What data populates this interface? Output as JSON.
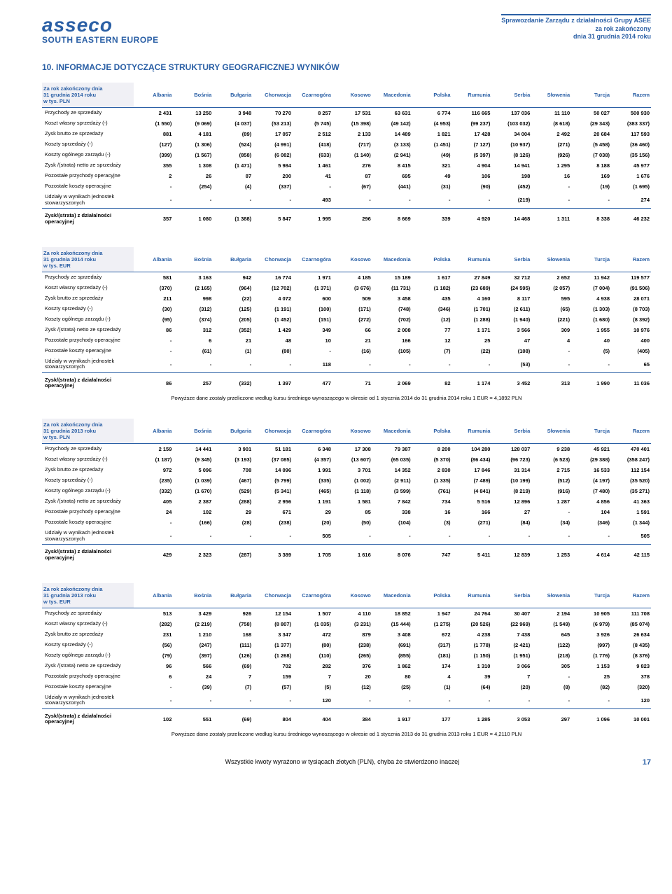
{
  "header": {
    "logo_top": "asseco",
    "logo_sub": "SOUTH EASTERN EUROPE",
    "right_line1": "Sprawozdanie Zarządu z działalności Grupy ASEE",
    "right_line2": "za rok zakończony",
    "right_line3": "dnia 31 grudnia 2014 roku"
  },
  "section_title": "10.  INFORMACJE DOTYCZĄCE STRUKTURY GEOGRAFICZNEJ WYNIKÓW",
  "columns": [
    "Albania",
    "Bośnia",
    "Bułgaria",
    "Chorwacja",
    "Czarnogóra",
    "Kosowo",
    "Macedonia",
    "Polska",
    "Rumunia",
    "Serbia",
    "Słowenia",
    "Turcja",
    "Razem"
  ],
  "tables": [
    {
      "title": "Za rok zakończony dnia\n31 grudnia 2014 roku\nw tys. PLN",
      "rows": [
        {
          "label": "Przychody ze sprzedaży",
          "v": [
            "2 431",
            "13 250",
            "3 948",
            "70 270",
            "8 257",
            "17 531",
            "63 631",
            "6 774",
            "116 665",
            "137 036",
            "11 110",
            "50 027",
            "500 930"
          ]
        },
        {
          "label": "Koszt własny sprzedaży (-)",
          "v": [
            "(1 550)",
            "(9 069)",
            "(4 037)",
            "(53 213)",
            "(5 745)",
            "(15 398)",
            "(49 142)",
            "(4 953)",
            "(99 237)",
            "(103 032)",
            "(8 618)",
            "(29 343)",
            "(383 337)"
          ]
        },
        {
          "label": "Zysk brutto ze sprzedaży",
          "v": [
            "881",
            "4 181",
            "(89)",
            "17 057",
            "2 512",
            "2 133",
            "14 489",
            "1 821",
            "17 428",
            "34 004",
            "2 492",
            "20 684",
            "117 593"
          ]
        },
        {
          "label": "Koszty sprzedaży (-)",
          "v": [
            "(127)",
            "(1 306)",
            "(524)",
            "(4 991)",
            "(418)",
            "(717)",
            "(3 133)",
            "(1 451)",
            "(7 127)",
            "(10 937)",
            "(271)",
            "(5 458)",
            "(36 460)"
          ]
        },
        {
          "label": "Koszty ogólnego zarządu (-)",
          "v": [
            "(399)",
            "(1 567)",
            "(858)",
            "(6 082)",
            "(633)",
            "(1 140)",
            "(2 941)",
            "(49)",
            "(5 397)",
            "(8 126)",
            "(926)",
            "(7 038)",
            "(35 156)"
          ]
        },
        {
          "label": "Zysk /(strata) netto ze sprzedaży",
          "v": [
            "355",
            "1 308",
            "(1 471)",
            "5 984",
            "1 461",
            "276",
            "8 415",
            "321",
            "4 904",
            "14 941",
            "1 295",
            "8 188",
            "45 977"
          ]
        },
        {
          "label": "Pozostałe przychody operacyjne",
          "v": [
            "2",
            "26",
            "87",
            "200",
            "41",
            "87",
            "695",
            "49",
            "106",
            "198",
            "16",
            "169",
            "1 676"
          ]
        },
        {
          "label": "Pozostałe koszty operacyjne",
          "v": [
            "-",
            "(254)",
            "(4)",
            "(337)",
            "-",
            "(67)",
            "(441)",
            "(31)",
            "(90)",
            "(452)",
            "-",
            "(19)",
            "(1 695)"
          ]
        },
        {
          "label": "Udziały w wynikach jednostek stowarzyszonych",
          "v": [
            "-",
            "-",
            "-",
            "-",
            "493",
            "-",
            "-",
            "-",
            "-",
            "(219)",
            "-",
            "-",
            "274"
          ]
        }
      ],
      "total": {
        "label": "Zysk/(strata) z działalności operacyjnej",
        "v": [
          "357",
          "1 080",
          "(1 388)",
          "5 847",
          "1 995",
          "296",
          "8 669",
          "339",
          "4 920",
          "14 468",
          "1 311",
          "8 338",
          "46 232"
        ]
      }
    },
    {
      "title": "Za rok zakończony dnia\n31 grudnia 2014 roku\nw tys. EUR",
      "rows": [
        {
          "label": "Przychody ze sprzedaży",
          "v": [
            "581",
            "3 163",
            "942",
            "16 774",
            "1 971",
            "4 185",
            "15 189",
            "1 617",
            "27 849",
            "32 712",
            "2 652",
            "11 942",
            "119 577"
          ]
        },
        {
          "label": "Koszt własny sprzedaży (-)",
          "v": [
            "(370)",
            "(2 165)",
            "(964)",
            "(12 702)",
            "(1 371)",
            "(3 676)",
            "(11 731)",
            "(1 182)",
            "(23 689)",
            "(24 595)",
            "(2 057)",
            "(7 004)",
            "(91 506)"
          ]
        },
        {
          "label": "Zysk brutto ze sprzedaży",
          "v": [
            "211",
            "998",
            "(22)",
            "4 072",
            "600",
            "509",
            "3 458",
            "435",
            "4 160",
            "8 117",
            "595",
            "4 938",
            "28 071"
          ]
        },
        {
          "label": "Koszty sprzedaży (-)",
          "v": [
            "(30)",
            "(312)",
            "(125)",
            "(1 191)",
            "(100)",
            "(171)",
            "(748)",
            "(346)",
            "(1 701)",
            "(2 611)",
            "(65)",
            "(1 303)",
            "(8 703)"
          ]
        },
        {
          "label": "Koszty ogólnego zarządu (-)",
          "v": [
            "(95)",
            "(374)",
            "(205)",
            "(1 452)",
            "(151)",
            "(272)",
            "(702)",
            "(12)",
            "(1 288)",
            "(1 940)",
            "(221)",
            "(1 680)",
            "(8 392)"
          ]
        },
        {
          "label": "Zysk /(strata) netto ze sprzedaży",
          "v": [
            "86",
            "312",
            "(352)",
            "1 429",
            "349",
            "66",
            "2 008",
            "77",
            "1 171",
            "3 566",
            "309",
            "1 955",
            "10 976"
          ]
        },
        {
          "label": "Pozostałe przychody operacyjne",
          "v": [
            "-",
            "6",
            "21",
            "48",
            "10",
            "21",
            "166",
            "12",
            "25",
            "47",
            "4",
            "40",
            "400"
          ]
        },
        {
          "label": "Pozostałe koszty operacyjne",
          "v": [
            "-",
            "(61)",
            "(1)",
            "(80)",
            "-",
            "(16)",
            "(105)",
            "(7)",
            "(22)",
            "(108)",
            "-",
            "(5)",
            "(405)"
          ]
        },
        {
          "label": "Udziały w wynikach jednostek stowarzyszonych",
          "v": [
            "-",
            "-",
            "-",
            "-",
            "118",
            "-",
            "-",
            "-",
            "-",
            "(53)",
            "-",
            "-",
            "65"
          ]
        }
      ],
      "total": {
        "label": "Zysk/(strata)  z działalności operacyjnej",
        "v": [
          "86",
          "257",
          "(332)",
          "1 397",
          "477",
          "71",
          "2 069",
          "82",
          "1 174",
          "3 452",
          "313",
          "1 990",
          "11 036"
        ]
      },
      "footnote": "Powyższe dane zostały przeliczone według kursu średniego wynoszącego w okresie od 1 stycznia 2014 do 31 grudnia 2014 roku 1 EUR = 4,1892 PLN"
    },
    {
      "title": "Za rok zakończony dnia\n31 grudnia 2013 roku\nw tys. PLN",
      "rows": [
        {
          "label": "Przychody ze sprzedaży",
          "v": [
            "2 159",
            "14 441",
            "3 901",
            "51 181",
            "6 348",
            "17 308",
            "79 387",
            "8 200",
            "104 280",
            "128 037",
            "9 238",
            "45 921",
            "470 401"
          ]
        },
        {
          "label": "Koszt własny sprzedaży (-)",
          "v": [
            "(1 187)",
            "(9 345)",
            "(3 193)",
            "(37 085)",
            "(4 357)",
            "(13 607)",
            "(65 035)",
            "(5 370)",
            "(86 434)",
            "(96 723)",
            "(6 523)",
            "(29 388)",
            "(358 247)"
          ]
        },
        {
          "label": "Zysk brutto ze sprzedaży",
          "v": [
            "972",
            "5 096",
            "708",
            "14 096",
            "1 991",
            "3 701",
            "14 352",
            "2 830",
            "17 846",
            "31 314",
            "2 715",
            "16 533",
            "112 154"
          ]
        },
        {
          "label": "Koszty sprzedaży (-)",
          "v": [
            "(235)",
            "(1 039)",
            "(467)",
            "(5 799)",
            "(335)",
            "(1 002)",
            "(2 911)",
            "(1 335)",
            "(7 489)",
            "(10 199)",
            "(512)",
            "(4 197)",
            "(35 520)"
          ]
        },
        {
          "label": "Koszty ogólnego zarządu (-)",
          "v": [
            "(332)",
            "(1 670)",
            "(529)",
            "(5 341)",
            "(465)",
            "(1 118)",
            "(3 599)",
            "(761)",
            "(4 841)",
            "(8 219)",
            "(916)",
            "(7 480)",
            "(35 271)"
          ]
        },
        {
          "label": "Zysk /(strata) netto ze sprzedaży",
          "v": [
            "405",
            "2 387",
            "(288)",
            "2 956",
            "1 191",
            "1 581",
            "7 842",
            "734",
            "5 516",
            "12 896",
            "1 287",
            "4 856",
            "41 363"
          ]
        },
        {
          "label": "Pozostałe przychody operacyjne",
          "v": [
            "24",
            "102",
            "29",
            "671",
            "29",
            "85",
            "338",
            "16",
            "166",
            "27",
            "-",
            "104",
            "1 591"
          ]
        },
        {
          "label": "Pozostałe koszty operacyjne",
          "v": [
            "-",
            "(166)",
            "(28)",
            "(238)",
            "(20)",
            "(50)",
            "(104)",
            "(3)",
            "(271)",
            "(84)",
            "(34)",
            "(346)",
            "(1 344)"
          ]
        },
        {
          "label": "Udziały w wynikach jednostek stowarzyszonych",
          "v": [
            "-",
            "-",
            "-",
            "-",
            "505",
            "-",
            "-",
            "-",
            "-",
            "-",
            "-",
            "-",
            "505"
          ]
        }
      ],
      "total": {
        "label": "Zysk/(strata) z działalności operacyjnej",
        "v": [
          "429",
          "2 323",
          "(287)",
          "3 389",
          "1 705",
          "1 616",
          "8 076",
          "747",
          "5 411",
          "12 839",
          "1 253",
          "4 614",
          "42 115"
        ]
      }
    },
    {
      "title": "Za rok zakończony dnia\n31 grudnia 2013 roku\nw tys. EUR",
      "rows": [
        {
          "label": "Przychody ze sprzedaży",
          "v": [
            "513",
            "3 429",
            "926",
            "12 154",
            "1 507",
            "4 110",
            "18 852",
            "1 947",
            "24 764",
            "30 407",
            "2 194",
            "10 905",
            "111 708"
          ]
        },
        {
          "label": "Koszt własny sprzedaży (-)",
          "v": [
            "(282)",
            "(2 219)",
            "(758)",
            "(8 807)",
            "(1 035)",
            "(3 231)",
            "(15 444)",
            "(1 275)",
            "(20 526)",
            "(22 969)",
            "(1 549)",
            "(6 979)",
            "(85 074)"
          ]
        },
        {
          "label": "Zysk brutto ze sprzedaży",
          "v": [
            "231",
            "1 210",
            "168",
            "3 347",
            "472",
            "879",
            "3 408",
            "672",
            "4 238",
            "7 438",
            "645",
            "3 926",
            "26 634"
          ]
        },
        {
          "label": "Koszty sprzedaży (-)",
          "v": [
            "(56)",
            "(247)",
            "(111)",
            "(1 377)",
            "(80)",
            "(238)",
            "(691)",
            "(317)",
            "(1 778)",
            "(2 421)",
            "(122)",
            "(997)",
            "(8 435)"
          ]
        },
        {
          "label": "Koszty ogólnego zarządu (-)",
          "v": [
            "(79)",
            "(397)",
            "(126)",
            "(1 268)",
            "(110)",
            "(265)",
            "(855)",
            "(181)",
            "(1 150)",
            "(1 951)",
            "(218)",
            "(1 776)",
            "(8 376)"
          ]
        },
        {
          "label": "Zysk /(strata) netto ze sprzedaży",
          "v": [
            "96",
            "566",
            "(69)",
            "702",
            "282",
            "376",
            "1 862",
            "174",
            "1 310",
            "3 066",
            "305",
            "1 153",
            "9 823"
          ]
        },
        {
          "label": "Pozostałe przychody operacyjne",
          "v": [
            "6",
            "24",
            "7",
            "159",
            "7",
            "20",
            "80",
            "4",
            "39",
            "7",
            "-",
            "25",
            "378"
          ]
        },
        {
          "label": "Pozostałe koszty operacyjne",
          "v": [
            "-",
            "(39)",
            "(7)",
            "(57)",
            "(5)",
            "(12)",
            "(25)",
            "(1)",
            "(64)",
            "(20)",
            "(8)",
            "(82)",
            "(320)"
          ]
        },
        {
          "label": "Udziały w wynikach jednostek stowarzyszonych",
          "v": [
            "-",
            "-",
            "-",
            "-",
            "120",
            "-",
            "-",
            "-",
            "-",
            "-",
            "-",
            "-",
            "120"
          ]
        }
      ],
      "total": {
        "label": "Zysk/(strata) z działalności operacyjnej",
        "v": [
          "102",
          "551",
          "(69)",
          "804",
          "404",
          "384",
          "1 917",
          "177",
          "1 285",
          "3 053",
          "297",
          "1 096",
          "10 001"
        ]
      },
      "footnote": "Powyższe dane zostały przeliczone według kursu średniego wynoszącego w okresie od 1 stycznia 2013 do 31 grudnia 2013 roku 1 EUR = 4,2110 PLN"
    }
  ],
  "footer": {
    "text": "Wszystkie kwoty wyrażono w tysiącach złotych (PLN), chyba że stwierdzono inaczej",
    "page": "17"
  }
}
